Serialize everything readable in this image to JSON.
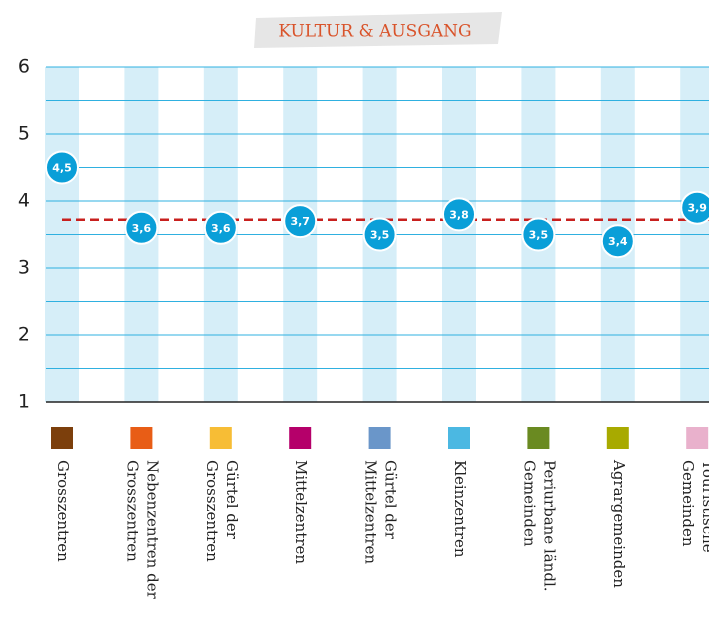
{
  "chart_data": {
    "type": "dot",
    "title": "KULTUR & AUSGANG",
    "categories": [
      [
        "Grosszentren"
      ],
      [
        "Nebenzentren der",
        "Grosszentren"
      ],
      [
        "Gürtel der",
        "Grosszentren"
      ],
      [
        "Mittelzentren"
      ],
      [
        "Gürtel der",
        "Mittelzentren"
      ],
      [
        "Kleinzentren"
      ],
      [
        "Periurbane ländl.",
        "Gemeinden"
      ],
      [
        "Agrargemeinden"
      ],
      [
        "Touristische",
        "Gemeinden"
      ]
    ],
    "category_colors": [
      "#7c3f0c",
      "#e85d16",
      "#f7bd35",
      "#b5006a",
      "#6a96c9",
      "#4bb8e2",
      "#6a8a21",
      "#a8aa00",
      "#e9b1cc"
    ],
    "values": [
      4.5,
      3.6,
      3.6,
      3.7,
      3.5,
      3.8,
      3.5,
      3.4,
      3.9
    ],
    "value_labels": [
      "4,5",
      "3,6",
      "3,6",
      "3,7",
      "3,5",
      "3,8",
      "3,5",
      "3,4",
      "3,9"
    ],
    "color": "#0a9fd8",
    "reference_line": 3.72,
    "reference_color": "#c8201e",
    "ylim": [
      1,
      6
    ],
    "yticks": [
      1,
      2,
      3,
      4,
      5,
      6
    ],
    "minor_yticks": [
      1.5,
      2.5,
      3.5,
      4.5,
      5.5
    ],
    "grid": true
  }
}
